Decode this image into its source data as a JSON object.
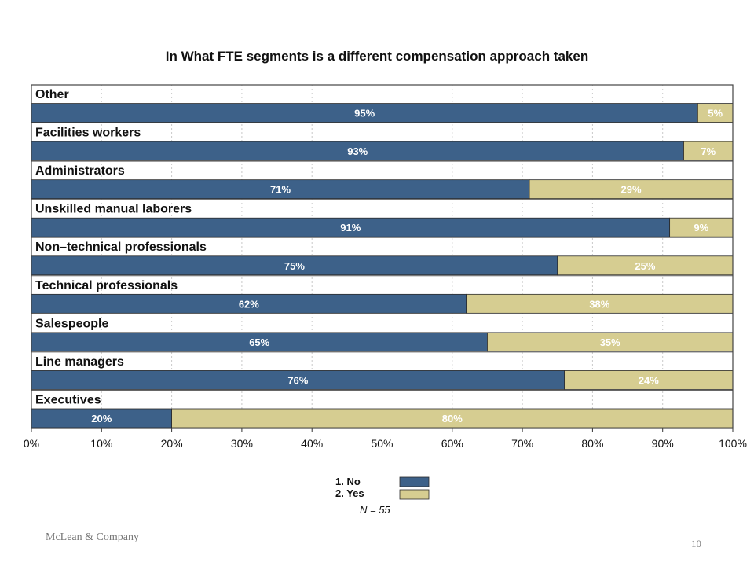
{
  "chart_data": {
    "type": "bar",
    "orientation": "horizontal",
    "stacked": true,
    "title": "In What FTE segments is a different compensation approach taken",
    "categories": [
      "Other",
      "Facilities workers",
      "Administrators",
      "Unskilled manual laborers",
      "Non–technical professionals",
      "Technical professionals",
      "Salespeople",
      "Line managers",
      "Executives"
    ],
    "series": [
      {
        "name": "1. No",
        "color": "#3d6189",
        "values": [
          95,
          93,
          71,
          91,
          75,
          62,
          65,
          76,
          20
        ]
      },
      {
        "name": "2. Yes",
        "color": "#d6cd91",
        "values": [
          5,
          7,
          29,
          9,
          25,
          38,
          35,
          24,
          80
        ]
      }
    ],
    "value_suffix": "%",
    "xlim": [
      0,
      100
    ],
    "x_ticks": [
      "0%",
      "10%",
      "20%",
      "30%",
      "40%",
      "50%",
      "60%",
      "70%",
      "80%",
      "90%",
      "100%"
    ],
    "grid": true,
    "legend_position": "bottom-center",
    "note": "N = 55"
  },
  "footer": {
    "company": "McLean & Company",
    "page_number": "10"
  }
}
